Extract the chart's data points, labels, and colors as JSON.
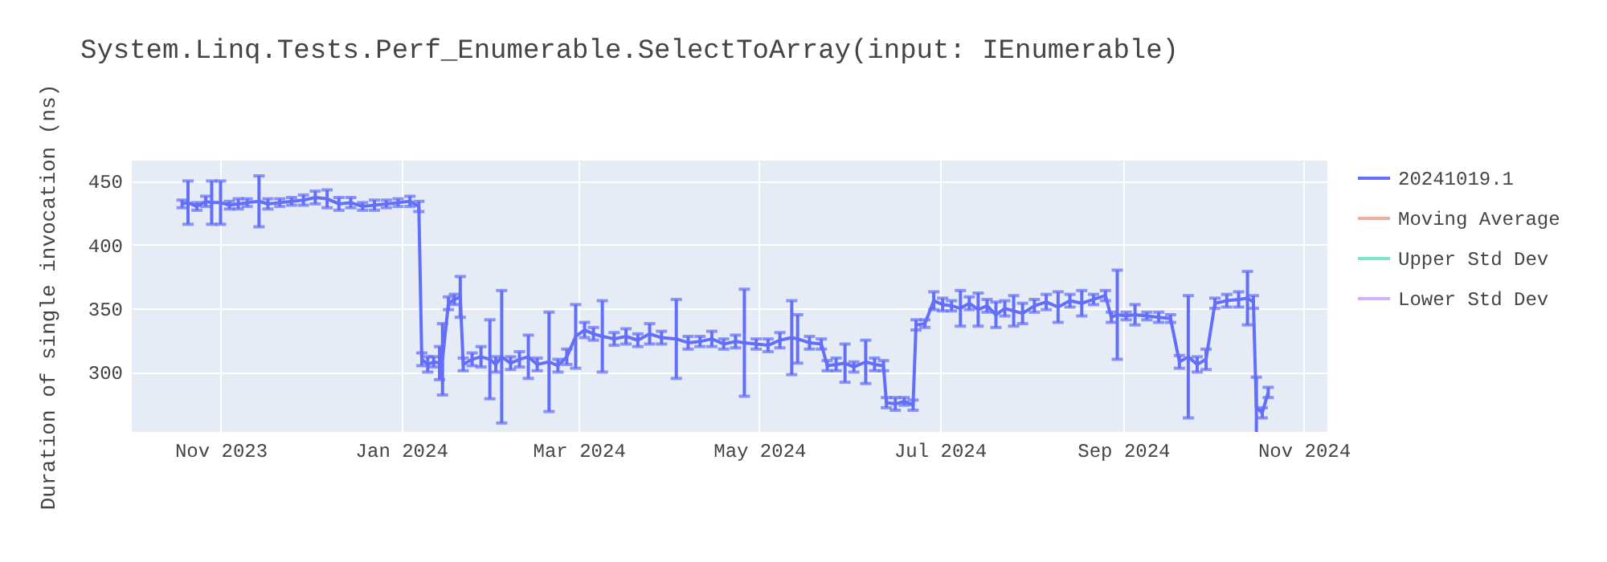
{
  "chart_data": {
    "type": "line",
    "title": "System.Linq.Tests.Perf_Enumerable.SelectToArray(input: IEnumerable)",
    "ylabel": "Duration of single invocation (ns)",
    "x": [
      "2023-10-19",
      "2023-10-21",
      "2023-10-24",
      "2023-10-27",
      "2023-10-29",
      "2023-11-01",
      "2023-11-04",
      "2023-11-07",
      "2023-11-10",
      "2023-11-14",
      "2023-11-17",
      "2023-11-21",
      "2023-11-25",
      "2023-11-29",
      "2023-12-03",
      "2023-12-07",
      "2023-12-11",
      "2023-12-15",
      "2023-12-19",
      "2023-12-23",
      "2023-12-27",
      "2023-12-31",
      "2024-01-04",
      "2024-01-07",
      "2024-01-08",
      "2024-01-10",
      "2024-01-12",
      "2024-01-14",
      "2024-01-15",
      "2024-01-17",
      "2024-01-19",
      "2024-01-21",
      "2024-01-22",
      "2024-01-25",
      "2024-01-28",
      "2024-01-31",
      "2024-02-02",
      "2024-02-04",
      "2024-02-07",
      "2024-02-10",
      "2024-02-13",
      "2024-02-16",
      "2024-02-20",
      "2024-02-23",
      "2024-02-26",
      "2024-02-29",
      "2024-03-03",
      "2024-03-06",
      "2024-03-09",
      "2024-03-13",
      "2024-03-17",
      "2024-03-21",
      "2024-03-25",
      "2024-03-29",
      "2024-04-03",
      "2024-04-07",
      "2024-04-11",
      "2024-04-15",
      "2024-04-19",
      "2024-04-23",
      "2024-04-26",
      "2024-04-30",
      "2024-05-04",
      "2024-05-08",
      "2024-05-12",
      "2024-05-14",
      "2024-05-18",
      "2024-05-22",
      "2024-05-24",
      "2024-05-27",
      "2024-05-30",
      "2024-06-02",
      "2024-06-06",
      "2024-06-09",
      "2024-06-12",
      "2024-06-13",
      "2024-06-16",
      "2024-06-19",
      "2024-06-22",
      "2024-06-23",
      "2024-06-26",
      "2024-06-29",
      "2024-07-02",
      "2024-07-05",
      "2024-07-08",
      "2024-07-11",
      "2024-07-14",
      "2024-07-17",
      "2024-07-20",
      "2024-07-23",
      "2024-07-26",
      "2024-07-29",
      "2024-08-02",
      "2024-08-06",
      "2024-08-10",
      "2024-08-14",
      "2024-08-18",
      "2024-08-22",
      "2024-08-26",
      "2024-08-28",
      "2024-08-30",
      "2024-09-02",
      "2024-09-05",
      "2024-09-09",
      "2024-09-13",
      "2024-09-17",
      "2024-09-20",
      "2024-09-23",
      "2024-09-26",
      "2024-09-29",
      "2024-10-02",
      "2024-10-06",
      "2024-10-10",
      "2024-10-13",
      "2024-10-15",
      "2024-10-16",
      "2024-10-18",
      "2024-10-20"
    ],
    "series": [
      {
        "name": "20241019.1",
        "color": "#636efa",
        "values": [
          432,
          433,
          430,
          434,
          433,
          433,
          431,
          432,
          433,
          434,
          432,
          433,
          434,
          435,
          437,
          436,
          432,
          433,
          430,
          431,
          432,
          433,
          434,
          430,
          310,
          306,
          308,
          307,
          310,
          354,
          357,
          359,
          306,
          310,
          312,
          310,
          306,
          312,
          307,
          310,
          312,
          306,
          308,
          305,
          312,
          328,
          333,
          330,
          328,
          326,
          328,
          325,
          330,
          327,
          326,
          323,
          324,
          326,
          322,
          324,
          323,
          322,
          321,
          325,
          327,
          326,
          323,
          322,
          305,
          306,
          307,
          304,
          308,
          306,
          305,
          276,
          275,
          277,
          274,
          337,
          338,
          356,
          353,
          352,
          350,
          354,
          349,
          352,
          345,
          350,
          348,
          346,
          352,
          355,
          351,
          356,
          354,
          357,
          360,
          343,
          345,
          344,
          345,
          344,
          343,
          342,
          308,
          312,
          306,
          310,
          354,
          356,
          357,
          358,
          355,
          272,
          268,
          284
        ],
        "errors": [
          3,
          17,
          3,
          4,
          17,
          17,
          3,
          4,
          3,
          20,
          4,
          3,
          3,
          4,
          5,
          7,
          5,
          4,
          3,
          4,
          3,
          3,
          4,
          4,
          5,
          6,
          4,
          13,
          28,
          5,
          4,
          16,
          5,
          5,
          8,
          31,
          6,
          52,
          5,
          6,
          17,
          5,
          39,
          5,
          6,
          25,
          6,
          5,
          28,
          5,
          6,
          5,
          8,
          5,
          31,
          5,
          4,
          6,
          4,
          5,
          42,
          4,
          5,
          6,
          29,
          19,
          5,
          4,
          4,
          5,
          15,
          4,
          17,
          5,
          4,
          4,
          5,
          3,
          4,
          4,
          3,
          7,
          5,
          4,
          14,
          5,
          13,
          5,
          10,
          6,
          12,
          8,
          5,
          6,
          12,
          5,
          10,
          4,
          4,
          4,
          35,
          3,
          8,
          3,
          4,
          3,
          5,
          48,
          6,
          8,
          4,
          5,
          6,
          21,
          5,
          24,
          4,
          4
        ]
      },
      {
        "name": "Moving Average",
        "color": "#f5aa9d",
        "values": [
          null,
          null,
          null,
          null,
          null,
          null,
          null,
          null,
          null,
          null,
          null,
          null,
          null,
          null,
          null,
          null,
          null,
          null,
          null,
          null,
          null,
          null,
          null,
          null,
          null,
          null,
          null,
          null,
          null,
          null,
          null,
          null,
          null,
          null,
          null,
          null,
          null,
          null,
          null,
          null,
          null,
          null,
          null,
          null,
          null,
          null,
          null,
          null,
          null,
          null,
          null,
          null,
          null,
          null,
          null,
          null,
          null,
          null,
          null,
          null,
          null,
          null,
          null,
          null,
          null,
          null,
          null,
          null,
          null,
          null,
          null,
          null,
          null,
          null,
          null,
          null,
          null,
          null,
          null,
          null,
          null,
          null,
          null,
          null,
          null,
          null,
          null,
          null,
          null,
          null,
          null,
          null,
          null,
          null,
          null,
          null,
          null,
          null,
          null,
          null,
          null,
          null,
          null,
          null,
          null,
          null,
          null,
          null,
          null,
          null,
          null,
          null,
          null,
          null,
          null,
          null,
          null,
          null
        ]
      },
      {
        "name": "Upper Std Dev",
        "color": "#7fe5ca",
        "values": [
          null,
          null,
          null,
          null,
          null,
          null,
          null,
          null,
          null,
          null,
          null,
          null,
          null,
          null,
          null,
          null,
          null,
          null,
          null,
          null,
          null,
          null,
          null,
          null,
          null,
          null,
          null,
          null,
          null,
          null,
          null,
          null,
          null,
          null,
          null,
          null,
          null,
          null,
          null,
          null,
          null,
          null,
          null,
          null,
          null,
          null,
          null,
          null,
          null,
          null,
          null,
          null,
          null,
          null,
          null,
          null,
          null,
          null,
          null,
          null,
          null,
          null,
          null,
          null,
          null,
          null,
          null,
          null,
          null,
          null,
          null,
          null,
          null,
          null,
          null,
          null,
          null,
          null,
          null,
          null,
          null,
          null,
          null,
          null,
          null,
          null,
          null,
          null,
          null,
          null,
          null,
          null,
          null,
          null,
          null,
          null,
          null,
          null,
          null,
          null,
          null,
          null,
          null,
          null,
          null,
          null,
          null,
          null,
          null,
          null,
          null,
          null,
          null,
          null,
          null,
          null,
          null,
          null
        ]
      },
      {
        "name": "Lower Std Dev",
        "color": "#d5b1fc",
        "values": [
          null,
          null,
          null,
          null,
          null,
          null,
          null,
          null,
          null,
          null,
          null,
          null,
          null,
          null,
          null,
          null,
          null,
          null,
          null,
          null,
          null,
          null,
          null,
          null,
          null,
          null,
          null,
          null,
          null,
          null,
          null,
          null,
          null,
          null,
          null,
          null,
          null,
          null,
          null,
          null,
          null,
          null,
          null,
          null,
          null,
          null,
          null,
          null,
          null,
          null,
          null,
          null,
          null,
          null,
          null,
          null,
          null,
          null,
          null,
          null,
          null,
          null,
          null,
          null,
          null,
          null,
          null,
          null,
          null,
          null,
          null,
          null,
          null,
          null,
          null,
          null,
          null,
          null,
          null,
          null,
          null,
          null,
          null,
          null,
          null,
          null,
          null,
          null,
          null,
          null,
          null,
          null,
          null,
          null,
          null,
          null,
          null,
          null,
          null,
          null,
          null,
          null,
          null,
          null,
          null,
          null,
          null,
          null,
          null,
          null,
          null,
          null,
          null,
          null,
          null,
          null,
          null,
          null
        ]
      }
    ],
    "xlim": [
      "2023-10-02",
      "2024-11-09"
    ],
    "xticks": [
      {
        "value": "2023-11-01",
        "label": "Nov 2023"
      },
      {
        "value": "2024-01-01",
        "label": "Jan 2024"
      },
      {
        "value": "2024-03-01",
        "label": "Mar 2024"
      },
      {
        "value": "2024-05-01",
        "label": "May 2024"
      },
      {
        "value": "2024-07-01",
        "label": "Jul 2024"
      },
      {
        "value": "2024-09-01",
        "label": "Sep 2024"
      },
      {
        "value": "2024-11-01",
        "label": "Nov 2024"
      }
    ],
    "ylim": [
      253,
      466
    ],
    "yticks": [
      300,
      350,
      400,
      450
    ],
    "grid": true,
    "legend": "top right"
  }
}
